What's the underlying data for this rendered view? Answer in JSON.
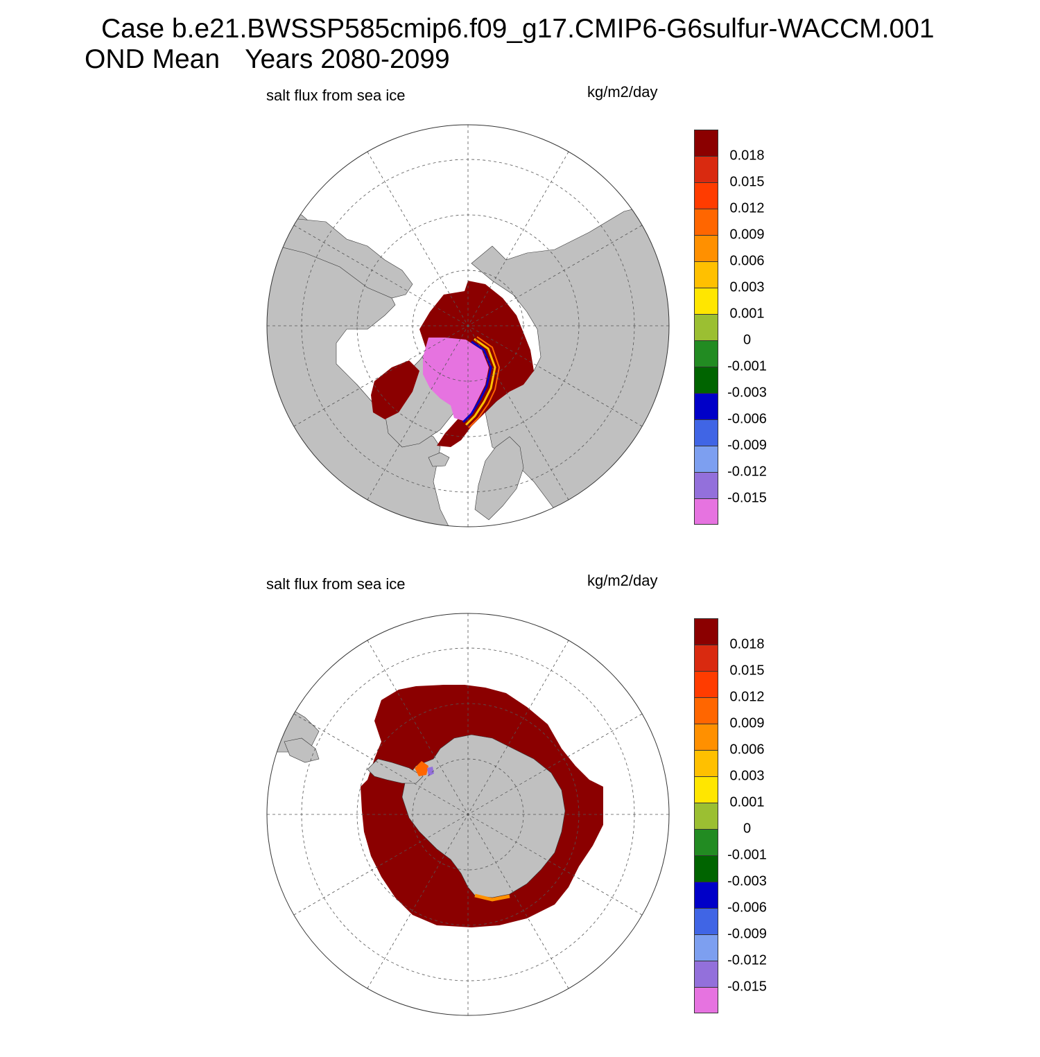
{
  "title": {
    "line1": "Case b.e21.BWSSP585cmip6.f09_g17.CMIP6-G6sulfur-WACCM.001",
    "line2_left": "OND Mean",
    "line2_right": "Years 2080-2099"
  },
  "panels": [
    {
      "variable": "salt flux from sea ice",
      "units": "kg/m2/day",
      "hemisphere": "north"
    },
    {
      "variable": "salt flux from sea ice",
      "units": "kg/m2/day",
      "hemisphere": "south"
    }
  ],
  "colorbar": {
    "colors": [
      "#8b0000",
      "#d92a10",
      "#ff3c00",
      "#ff6600",
      "#ff9000",
      "#ffc000",
      "#ffe600",
      "#9bbf32",
      "#228b22",
      "#006400",
      "#0000c8",
      "#4065e5",
      "#7d9ff0",
      "#9370db",
      "#e673e0"
    ],
    "labels": [
      "0.018",
      "0.015",
      "0.012",
      "0.009",
      "0.006",
      "0.003",
      "0.001",
      "0",
      "-0.001",
      "-0.003",
      "-0.006",
      "-0.009",
      "-0.012",
      "-0.015"
    ]
  },
  "map_colors": {
    "land": "#c0c0c0",
    "ocean": "#ffffff",
    "gridline": "#555555"
  }
}
